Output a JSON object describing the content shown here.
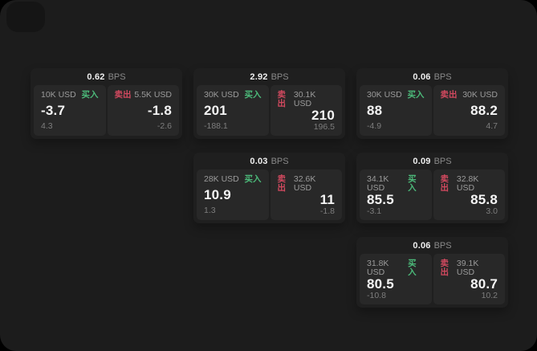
{
  "labels": {
    "bps": "BPS",
    "buy": "买入",
    "sell": "卖出"
  },
  "colors": {
    "page_bg": "#1c1c1c",
    "card_bg": "#1f1f1f",
    "tile_bg": "#282828",
    "buy_green": "#4cba7a",
    "sell_red": "#d2495f"
  },
  "cards": [
    {
      "bps": "0.62",
      "buy": {
        "amount": "10K USD",
        "price": "-3.7",
        "delta": "4.3"
      },
      "sell": {
        "amount": "5.5K USD",
        "price": "-1.8",
        "delta": "-2.6"
      }
    },
    {
      "bps": "2.92",
      "buy": {
        "amount": "30K USD",
        "price": "201",
        "delta": "-188.1"
      },
      "sell": {
        "amount": "30.1K USD",
        "price": "210",
        "delta": "196.5"
      }
    },
    {
      "bps": "0.06",
      "buy": {
        "amount": "30K USD",
        "price": "88",
        "delta": "-4.9"
      },
      "sell": {
        "amount": "30K USD",
        "price": "88.2",
        "delta": "4.7"
      }
    },
    {
      "bps": "0.03",
      "buy": {
        "amount": "28K USD",
        "price": "10.9",
        "delta": "1.3"
      },
      "sell": {
        "amount": "32.6K USD",
        "price": "11",
        "delta": "-1.8"
      }
    },
    {
      "bps": "0.09",
      "buy": {
        "amount": "34.1K USD",
        "price": "85.5",
        "delta": "-3.1"
      },
      "sell": {
        "amount": "32.8K USD",
        "price": "85.8",
        "delta": "3.0"
      }
    },
    {
      "bps": "0.06",
      "buy": {
        "amount": "31.8K USD",
        "price": "80.5",
        "delta": "-10.8"
      },
      "sell": {
        "amount": "39.1K USD",
        "price": "80.7",
        "delta": "10.2"
      }
    }
  ]
}
